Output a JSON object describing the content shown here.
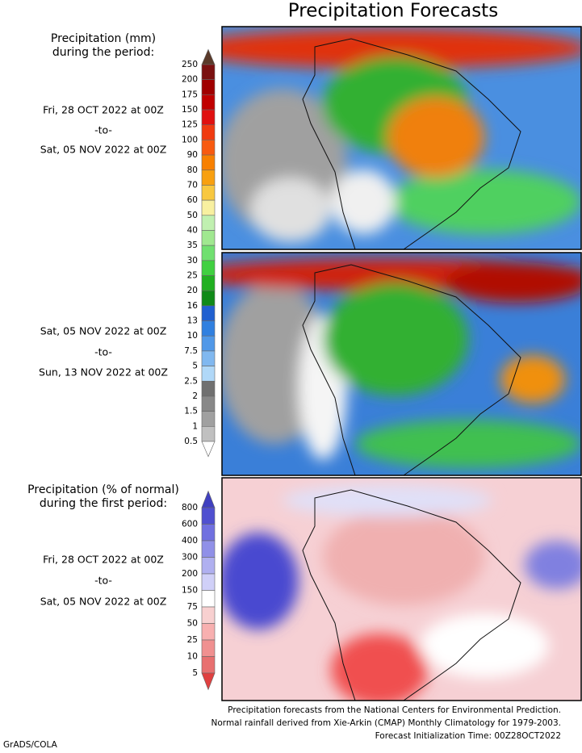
{
  "title": "Precipitation Forecasts",
  "panels": [
    {
      "heading": [
        "Precipitation (mm)",
        "during the period:"
      ],
      "start": "Fri, 28 OCT 2022 at 00Z",
      "separator": "-to-",
      "end": "Sat, 05 NOV 2022 at 00Z"
    },
    {
      "start": "Sat, 05 NOV 2022 at 00Z",
      "separator": "-to-",
      "end": "Sun, 13 NOV 2022 at 00Z"
    },
    {
      "heading": [
        "Precipitation (% of normal)",
        "during the first period:"
      ],
      "start": "Fri, 28 OCT 2022 at 00Z",
      "separator": "-to-",
      "end": "Sat, 05 NOV 2022 at 00Z"
    }
  ],
  "legends": [
    {
      "labels": [
        "250",
        "200",
        "175",
        "150",
        "125",
        "100",
        "90",
        "80",
        "70",
        "60",
        "50",
        "40",
        "35",
        "30",
        "25",
        "20",
        "16",
        "13",
        "10",
        "7.5",
        "5",
        "2.5",
        "2",
        "1.5",
        "1",
        "0.5"
      ],
      "colors": [
        "#5a3a2a",
        "#7a1010",
        "#a00000",
        "#c00000",
        "#e01010",
        "#f03a10",
        "#f85a10",
        "#f88000",
        "#f8a010",
        "#f8c840",
        "#f8f0a0",
        "#c0f0b0",
        "#a0e890",
        "#70e070",
        "#40d040",
        "#20b020",
        "#108a18",
        "#2060d0",
        "#3080e0",
        "#5098e8",
        "#80b8f0",
        "#b0d8f8",
        "#707070",
        "#888888",
        "#a0a0a0",
        "#c0c0c0",
        "#ffffff"
      ]
    },
    {
      "labels": [
        "800",
        "600",
        "400",
        "300",
        "200",
        "150",
        "75",
        "50",
        "25",
        "10",
        "5"
      ],
      "colors": [
        "#4040c0",
        "#5050d0",
        "#7070e0",
        "#9090e8",
        "#b0b0f0",
        "#d0d0f8",
        "#ffffff",
        "#f8d0d0",
        "#f8b0b0",
        "#f09090",
        "#e87070",
        "#e04040"
      ]
    }
  ],
  "footer": [
    "Precipitation forecasts from the National Centers for Environmental Prediction.",
    "Normal rainfall derived from Xie-Arkin (CMAP) Monthly Climatology for 1979-2003.",
    "Forecast Initialization Time: 00Z28OCT2022"
  ],
  "credit": "GrADS/COLA"
}
